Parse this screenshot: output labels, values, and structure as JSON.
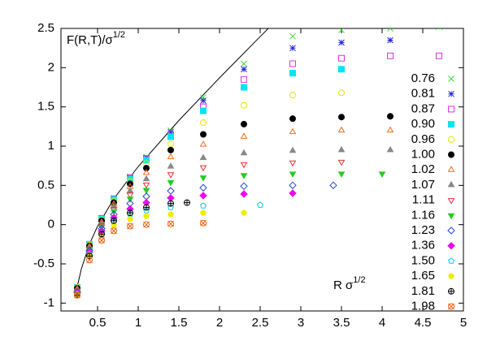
{
  "chart_data": {
    "type": "scatter",
    "ylabel": {
      "text": "F(R,T)/σ",
      "sup": "1/2"
    },
    "xlabel": {
      "text": "R σ",
      "sup": "1/2"
    },
    "xlim": [
      0.05,
      5
    ],
    "ylim": [
      -1.1,
      2.5
    ],
    "xticks": [
      0.5,
      1,
      1.5,
      2,
      2.5,
      3,
      3.5,
      4,
      4.5,
      5
    ],
    "yticks": [
      -1,
      -0.5,
      0,
      0.5,
      1,
      1.5,
      2,
      2.5
    ],
    "curve": {
      "color": "#000000",
      "x": [
        0.25,
        0.3,
        0.4,
        0.5,
        0.7,
        1,
        1.5,
        2,
        2.5,
        2.75
      ],
      "values": [
        -0.79,
        -0.567,
        -0.25,
        -0.02,
        0.329,
        0.74,
        1.327,
        1.87,
        2.396,
        2.655
      ]
    },
    "series": [
      {
        "name": "0.76",
        "color": "#33dd33",
        "marker": "x",
        "x": [
          0.25,
          0.4,
          0.55,
          0.7,
          0.9,
          1.1,
          1.4,
          1.8,
          2.3,
          2.9,
          3.5,
          4.1,
          4.7
        ],
        "values": [
          -0.8,
          -0.25,
          0.08,
          0.33,
          0.61,
          0.86,
          1.2,
          1.62,
          2.05,
          2.4,
          2.48,
          2.5,
          2.52
        ]
      },
      {
        "name": "0.81",
        "color": "#2222dd",
        "marker": "star",
        "x": [
          0.25,
          0.4,
          0.55,
          0.7,
          0.9,
          1.1,
          1.4,
          1.8,
          2.3,
          2.9,
          3.5,
          4.1
        ],
        "values": [
          -0.8,
          -0.25,
          0.08,
          0.33,
          0.6,
          0.85,
          1.18,
          1.58,
          1.98,
          2.25,
          2.32,
          2.35
        ]
      },
      {
        "name": "0.87",
        "color": "#dd33dd",
        "marker": "box",
        "x": [
          0.25,
          0.4,
          0.55,
          0.7,
          0.9,
          1.1,
          1.4,
          1.8,
          2.3,
          2.9,
          3.5,
          4.1,
          4.7
        ],
        "values": [
          -0.8,
          -0.25,
          0.08,
          0.33,
          0.6,
          0.84,
          1.15,
          1.5,
          1.85,
          2.05,
          2.12,
          2.15,
          2.15
        ]
      },
      {
        "name": "0.90",
        "color": "#00e5ee",
        "marker": "filled-box",
        "x": [
          0.25,
          0.4,
          0.55,
          0.7,
          0.9,
          1.1,
          1.4,
          1.8,
          2.3,
          2.9,
          3.5
        ],
        "values": [
          -0.8,
          -0.25,
          0.07,
          0.32,
          0.58,
          0.82,
          1.12,
          1.45,
          1.75,
          1.93,
          1.98
        ]
      },
      {
        "name": "0.96",
        "color": "#e5e500",
        "marker": "circle",
        "x": [
          0.25,
          0.4,
          0.55,
          0.7,
          0.9,
          1.1,
          1.4,
          1.8,
          2.3,
          2.9,
          3.5
        ],
        "values": [
          -0.8,
          -0.26,
          0.06,
          0.3,
          0.55,
          0.78,
          1.03,
          1.3,
          1.52,
          1.65,
          1.68
        ]
      },
      {
        "name": "1.00",
        "color": "#000000",
        "marker": "dot",
        "x": [
          0.25,
          0.4,
          0.55,
          0.7,
          0.9,
          1.1,
          1.4,
          1.8,
          2.3,
          2.9,
          3.5,
          4.1
        ],
        "values": [
          -0.81,
          -0.27,
          0.05,
          0.28,
          0.52,
          0.72,
          0.95,
          1.15,
          1.28,
          1.35,
          1.37,
          1.38
        ]
      },
      {
        "name": "1.02",
        "color": "#f07020",
        "marker": "triangle",
        "x": [
          0.25,
          0.4,
          0.55,
          0.7,
          0.9,
          1.1,
          1.4,
          1.8,
          2.3,
          2.9,
          3.5,
          4.1
        ],
        "values": [
          -0.82,
          -0.28,
          0.03,
          0.26,
          0.48,
          0.66,
          0.86,
          1.02,
          1.12,
          1.18,
          1.2,
          1.2
        ]
      },
      {
        "name": "1.07",
        "color": "#888888",
        "marker": "filled-triangle",
        "x": [
          0.25,
          0.4,
          0.55,
          0.7,
          0.9,
          1.1,
          1.4,
          1.8,
          2.3,
          2.9,
          3.5,
          4.1
        ],
        "values": [
          -0.83,
          -0.3,
          0.01,
          0.23,
          0.43,
          0.58,
          0.74,
          0.85,
          0.91,
          0.94,
          0.95,
          0.95
        ]
      },
      {
        "name": "1.11",
        "color": "#e83030",
        "marker": "inv-triangle",
        "x": [
          0.25,
          0.4,
          0.55,
          0.7,
          0.9,
          1.1,
          1.4,
          1.8,
          2.3,
          2.9,
          3.5
        ],
        "values": [
          -0.84,
          -0.31,
          -0.01,
          0.2,
          0.38,
          0.51,
          0.64,
          0.73,
          0.77,
          0.79,
          0.8
        ]
      },
      {
        "name": "1.16",
        "color": "#22cc22",
        "marker": "filled-inv-triangle",
        "x": [
          0.25,
          0.4,
          0.55,
          0.7,
          0.9,
          1.1,
          1.4,
          1.8,
          2.3,
          2.9,
          3.5,
          4.0
        ],
        "values": [
          -0.85,
          -0.32,
          -0.03,
          0.17,
          0.33,
          0.44,
          0.54,
          0.6,
          0.63,
          0.65,
          0.65,
          0.65
        ]
      },
      {
        "name": "1.23",
        "color": "#2244cc",
        "marker": "diamond",
        "x": [
          0.25,
          0.4,
          0.55,
          0.7,
          0.9,
          1.1,
          1.4,
          1.8,
          2.3,
          2.9,
          3.4
        ],
        "values": [
          -0.86,
          -0.33,
          -0.05,
          0.13,
          0.27,
          0.36,
          0.43,
          0.47,
          0.49,
          0.5,
          0.5
        ]
      },
      {
        "name": "1.36",
        "color": "#ee00ee",
        "marker": "filled-diamond",
        "x": [
          0.25,
          0.4,
          0.55,
          0.7,
          0.9,
          1.1,
          1.4,
          1.8,
          2.3,
          2.9
        ],
        "values": [
          -0.87,
          -0.35,
          -0.08,
          0.09,
          0.2,
          0.28,
          0.34,
          0.37,
          0.39,
          0.4
        ]
      },
      {
        "name": "1.50",
        "color": "#00ccee",
        "marker": "pentagon",
        "x": [
          0.25,
          0.4,
          0.55,
          0.7,
          0.9,
          1.1,
          1.4,
          1.8,
          2.5
        ],
        "values": [
          -0.88,
          -0.37,
          -0.11,
          0.04,
          0.13,
          0.18,
          0.22,
          0.24,
          0.25
        ]
      },
      {
        "name": "1.65",
        "color": "#eeee00",
        "marker": "filled-pentagon",
        "x": [
          0.25,
          0.4,
          0.55,
          0.7,
          0.9,
          1.1,
          1.4,
          1.8,
          2.3
        ],
        "values": [
          -0.89,
          -0.39,
          -0.14,
          -0.01,
          0.07,
          0.11,
          0.13,
          0.15,
          0.15
        ]
      },
      {
        "name": "1.81",
        "color": "#000000",
        "marker": "circle-plus",
        "x": [
          0.25,
          0.4,
          0.55,
          0.7,
          0.9,
          1.1,
          1.4,
          1.6
        ],
        "values": [
          -0.9,
          -0.4,
          -0.12,
          0.05,
          0.15,
          0.22,
          0.27,
          0.28
        ]
      },
      {
        "name": "1.98",
        "color": "#f06010",
        "marker": "circle-x",
        "x": [
          0.25,
          0.4,
          0.55,
          0.7,
          0.9,
          1.1,
          1.4,
          1.8
        ],
        "values": [
          -0.9,
          -0.45,
          -0.2,
          -0.08,
          -0.02,
          0.0,
          0.01,
          0.02
        ]
      }
    ]
  }
}
